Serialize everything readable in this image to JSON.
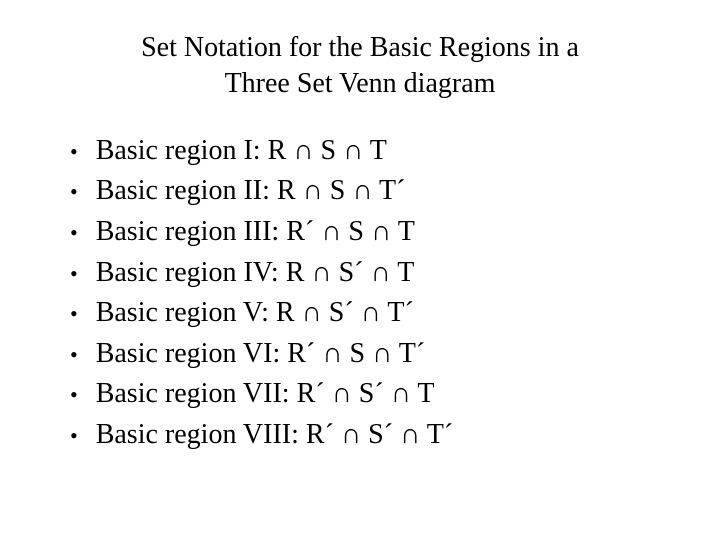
{
  "title_line1": "Set Notation for the Basic Regions in a",
  "title_line2": "Three Set Venn diagram",
  "bullet_char": "•",
  "items": [
    "Basic region I: R ∩ S ∩ T",
    "Basic region II: R ∩ S ∩ T´",
    "Basic region III: R´ ∩ S ∩ T",
    "Basic region IV: R ∩ S´ ∩ T",
    "Basic region V: R ∩ S´ ∩ T´",
    "Basic region VI: R´ ∩ S ∩ T´",
    "Basic region VII: R´ ∩ S´ ∩ T",
    "Basic region VIII: R´ ∩ S´ ∩ T´"
  ],
  "colors": {
    "background": "#ffffff",
    "text": "#000000"
  },
  "typography": {
    "title_fontsize": 28,
    "item_fontsize": 28,
    "font_family": "Times New Roman"
  }
}
